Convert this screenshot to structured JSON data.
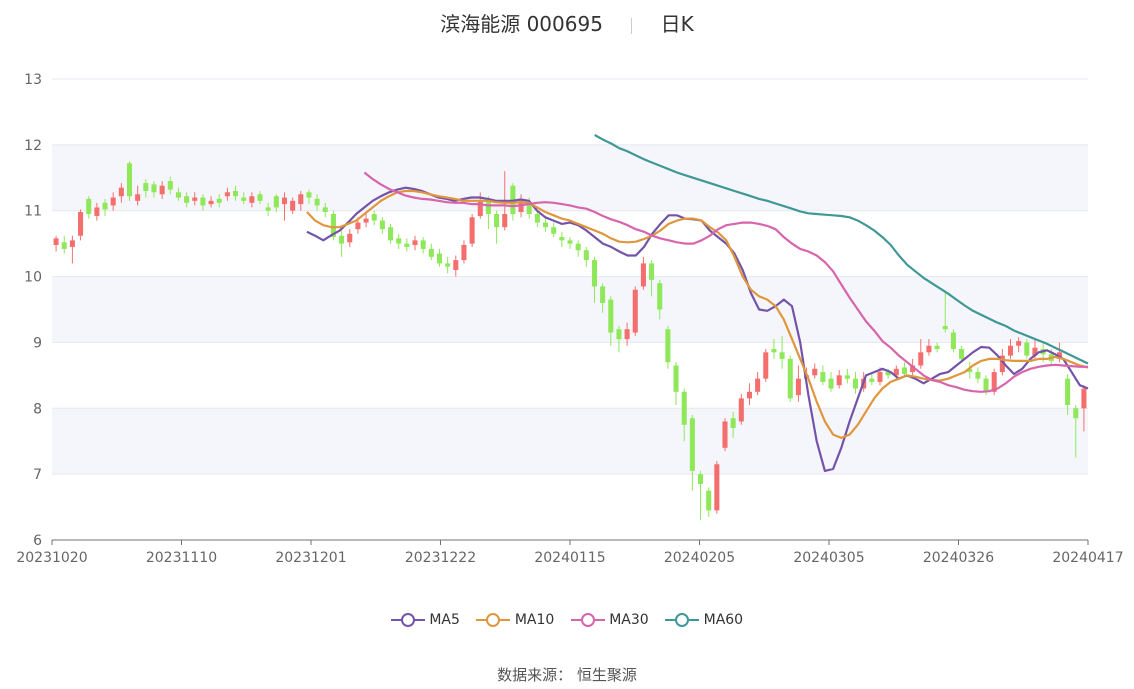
{
  "header": {
    "stock_name": "滨海能源",
    "stock_code": "000695",
    "period": "日K"
  },
  "source": {
    "label": "数据来源：",
    "value": "恒生聚源"
  },
  "colors": {
    "up": "#f56e6e",
    "down": "#8ee85a",
    "grid_band": "#f5f6fb",
    "grid_line": "#e6e8f0",
    "MA5": "#7454a8",
    "MA10": "#e0963c",
    "MA30": "#d864ac",
    "MA60": "#3f9896"
  },
  "chart_data": {
    "type": "candlestick",
    "title": "滨海能源 000695 日K",
    "ylim": [
      6,
      13
    ],
    "y_ticks": [
      6,
      7,
      8,
      9,
      10,
      11,
      12,
      13
    ],
    "x_ticks": [
      "20231020",
      "20231110",
      "20231201",
      "20231222",
      "20240115",
      "20240205",
      "20240305",
      "20240326",
      "20240417"
    ],
    "grid": true,
    "legend_position": "bottom",
    "series": [
      {
        "name": "MA5",
        "values": [
          10.68,
          10.62,
          10.55,
          10.63,
          10.7,
          10.82,
          10.95,
          11.05,
          11.15,
          11.22,
          11.28,
          11.32,
          11.35,
          11.33,
          11.3,
          11.25,
          11.2,
          11.18,
          11.15,
          11.18,
          11.2,
          11.2,
          11.18,
          11.15,
          11.15,
          11.15,
          11.17,
          11.15,
          11.0,
          10.9,
          10.85,
          10.8,
          10.82,
          10.78,
          10.7,
          10.6,
          10.5,
          10.45,
          10.38,
          10.32,
          10.32,
          10.45,
          10.65,
          10.8,
          10.93,
          10.93,
          10.88,
          10.87,
          10.85,
          10.7,
          10.6,
          10.5,
          10.35,
          10.1,
          9.75,
          9.5,
          9.48,
          9.55,
          9.65,
          9.55,
          9.0,
          8.2,
          7.5,
          7.05,
          7.08,
          7.4,
          7.8,
          8.15,
          8.5,
          8.55,
          8.6,
          8.55,
          8.45,
          8.5,
          8.45,
          8.38,
          8.45,
          8.52,
          8.55,
          8.65,
          8.75,
          8.85,
          8.93,
          8.92,
          8.8,
          8.65,
          8.52,
          8.6,
          8.75,
          8.85,
          8.88,
          8.82,
          8.75,
          8.55,
          8.35,
          8.3
        ]
      },
      {
        "name": "MA10",
        "values": [
          10.98,
          10.85,
          10.78,
          10.75,
          10.75,
          10.8,
          10.85,
          10.95,
          11.05,
          11.15,
          11.22,
          11.28,
          11.3,
          11.3,
          11.28,
          11.25,
          11.22,
          11.2,
          11.18,
          11.15,
          11.15,
          11.15,
          11.15,
          11.13,
          11.12,
          11.12,
          11.13,
          11.12,
          11.05,
          10.98,
          10.93,
          10.88,
          10.85,
          10.8,
          10.75,
          10.7,
          10.65,
          10.58,
          10.53,
          10.52,
          10.53,
          10.57,
          10.62,
          10.7,
          10.8,
          10.85,
          10.88,
          10.88,
          10.85,
          10.75,
          10.67,
          10.55,
          10.3,
          10.0,
          9.8,
          9.7,
          9.65,
          9.55,
          9.35,
          9.05,
          8.75,
          8.45,
          8.1,
          7.8,
          7.6,
          7.55,
          7.6,
          7.75,
          7.95,
          8.15,
          8.3,
          8.4,
          8.45,
          8.5,
          8.48,
          8.45,
          8.43,
          8.42,
          8.45,
          8.5,
          8.55,
          8.65,
          8.72,
          8.75,
          8.75,
          8.73,
          8.72,
          8.72,
          8.72,
          8.75,
          8.75,
          8.78,
          8.75,
          8.7,
          8.65,
          8.62
        ]
      },
      {
        "name": "MA30",
        "values": [
          11.58,
          11.48,
          11.4,
          11.33,
          11.28,
          11.23,
          11.2,
          11.18,
          11.17,
          11.15,
          11.13,
          11.12,
          11.12,
          11.1,
          11.1,
          11.08,
          11.08,
          11.08,
          11.07,
          11.08,
          11.1,
          11.12,
          11.13,
          11.12,
          11.1,
          11.08,
          11.05,
          11.03,
          10.98,
          10.92,
          10.87,
          10.83,
          10.78,
          10.72,
          10.68,
          10.62,
          10.58,
          10.55,
          10.52,
          10.5,
          10.5,
          10.55,
          10.62,
          10.72,
          10.78,
          10.8,
          10.82,
          10.82,
          10.8,
          10.77,
          10.72,
          10.6,
          10.5,
          10.42,
          10.38,
          10.32,
          10.22,
          10.08,
          9.88,
          9.68,
          9.5,
          9.32,
          9.18,
          9.02,
          8.92,
          8.8,
          8.7,
          8.6,
          8.5,
          8.43,
          8.4,
          8.35,
          8.32,
          8.28,
          8.26,
          8.25,
          8.26,
          8.3,
          8.38,
          8.48,
          8.55,
          8.6,
          8.63,
          8.65,
          8.66,
          8.65,
          8.64,
          8.63,
          8.63
        ]
      },
      {
        "name": "MA60",
        "values": [
          12.15,
          12.08,
          12.02,
          11.95,
          11.9,
          11.84,
          11.78,
          11.73,
          11.68,
          11.63,
          11.58,
          11.54,
          11.5,
          11.46,
          11.42,
          11.38,
          11.34,
          11.3,
          11.26,
          11.22,
          11.18,
          11.15,
          11.11,
          11.07,
          11.03,
          10.99,
          10.96,
          10.95,
          10.94,
          10.93,
          10.92,
          10.9,
          10.85,
          10.78,
          10.7,
          10.6,
          10.48,
          10.32,
          10.18,
          10.08,
          9.98,
          9.9,
          9.82,
          9.74,
          9.65,
          9.56,
          9.48,
          9.42,
          9.36,
          9.3,
          9.25,
          9.18,
          9.13,
          9.08,
          9.03,
          8.98,
          8.92,
          8.86,
          8.8,
          8.74,
          8.68
        ]
      }
    ],
    "candles": [
      [
        10.48,
        10.58,
        10.62,
        10.38
      ],
      [
        10.52,
        10.42,
        10.62,
        10.35
      ],
      [
        10.45,
        10.55,
        10.62,
        10.2
      ],
      [
        10.62,
        10.98,
        11.02,
        10.55
      ],
      [
        11.18,
        10.95,
        11.22,
        10.88
      ],
      [
        10.92,
        11.05,
        11.12,
        10.85
      ],
      [
        11.12,
        11.02,
        11.18,
        10.92
      ],
      [
        11.08,
        11.2,
        11.28,
        11.0
      ],
      [
        11.22,
        11.35,
        11.42,
        11.12
      ],
      [
        11.72,
        11.22,
        11.75,
        11.15
      ],
      [
        11.15,
        11.25,
        11.38,
        11.08
      ],
      [
        11.42,
        11.3,
        11.48,
        11.2
      ],
      [
        11.4,
        11.28,
        11.45,
        11.2
      ],
      [
        11.25,
        11.38,
        11.45,
        11.18
      ],
      [
        11.45,
        11.32,
        11.52,
        11.25
      ],
      [
        11.28,
        11.2,
        11.35,
        11.15
      ],
      [
        11.22,
        11.12,
        11.28,
        11.05
      ],
      [
        11.15,
        11.2,
        11.28,
        11.08
      ],
      [
        11.2,
        11.08,
        11.25,
        11.0
      ],
      [
        11.1,
        11.15,
        11.22,
        11.05
      ],
      [
        11.18,
        11.12,
        11.25,
        11.05
      ],
      [
        11.22,
        11.28,
        11.35,
        11.15
      ],
      [
        11.3,
        11.22,
        11.38,
        11.15
      ],
      [
        11.2,
        11.15,
        11.28,
        11.1
      ],
      [
        11.12,
        11.22,
        11.28,
        11.05
      ],
      [
        11.25,
        11.15,
        11.3,
        11.1
      ],
      [
        11.05,
        11.0,
        11.12,
        10.92
      ],
      [
        11.22,
        11.05,
        11.25,
        10.98
      ],
      [
        11.1,
        11.2,
        11.28,
        10.85
      ],
      [
        11.0,
        11.15,
        11.2,
        10.95
      ],
      [
        11.1,
        11.25,
        11.3,
        11.0
      ],
      [
        11.28,
        11.2,
        11.32,
        11.1
      ],
      [
        11.18,
        11.08,
        11.25,
        11.0
      ],
      [
        11.05,
        10.98,
        11.12,
        10.9
      ],
      [
        10.95,
        10.6,
        11.0,
        10.55
      ],
      [
        10.62,
        10.5,
        10.7,
        10.3
      ],
      [
        10.52,
        10.65,
        10.72,
        10.45
      ],
      [
        10.72,
        10.82,
        10.9,
        10.65
      ],
      [
        10.82,
        10.88,
        10.95,
        10.75
      ],
      [
        10.95,
        10.85,
        11.0,
        10.78
      ],
      [
        10.85,
        10.72,
        10.9,
        10.65
      ],
      [
        10.75,
        10.55,
        10.8,
        10.5
      ],
      [
        10.58,
        10.5,
        10.65,
        10.42
      ],
      [
        10.5,
        10.45,
        10.58,
        10.38
      ],
      [
        10.48,
        10.55,
        10.62,
        10.4
      ],
      [
        10.55,
        10.42,
        10.6,
        10.35
      ],
      [
        10.42,
        10.3,
        10.5,
        10.25
      ],
      [
        10.35,
        10.2,
        10.42,
        10.15
      ],
      [
        10.2,
        10.15,
        10.3,
        10.05
      ],
      [
        10.1,
        10.25,
        10.32,
        10.0
      ],
      [
        10.25,
        10.48,
        10.55,
        10.2
      ],
      [
        10.5,
        10.9,
        10.95,
        10.45
      ],
      [
        10.92,
        11.15,
        11.28,
        10.88
      ],
      [
        11.15,
        10.95,
        11.22,
        10.72
      ],
      [
        10.95,
        10.75,
        11.0,
        10.5
      ],
      [
        10.75,
        10.95,
        11.6,
        10.7
      ],
      [
        11.38,
        10.95,
        11.42,
        10.85
      ],
      [
        10.98,
        11.15,
        11.25,
        10.9
      ],
      [
        11.1,
        10.95,
        11.2,
        10.88
      ],
      [
        10.95,
        10.82,
        11.0,
        10.75
      ],
      [
        10.82,
        10.75,
        10.9,
        10.68
      ],
      [
        10.75,
        10.65,
        10.82,
        10.6
      ],
      [
        10.6,
        10.55,
        10.68,
        10.45
      ],
      [
        10.55,
        10.5,
        10.6,
        10.42
      ],
      [
        10.5,
        10.4,
        10.55,
        10.3
      ],
      [
        10.4,
        10.25,
        10.45,
        10.15
      ],
      [
        10.25,
        9.85,
        10.3,
        9.6
      ],
      [
        9.85,
        9.6,
        9.9,
        9.45
      ],
      [
        9.65,
        9.15,
        9.7,
        8.95
      ],
      [
        9.2,
        9.05,
        9.25,
        8.85
      ],
      [
        9.05,
        9.2,
        9.3,
        8.95
      ],
      [
        9.15,
        9.8,
        9.85,
        9.1
      ],
      [
        9.85,
        10.2,
        10.3,
        9.8
      ],
      [
        10.2,
        9.95,
        10.25,
        9.7
      ],
      [
        9.9,
        9.5,
        9.95,
        9.35
      ],
      [
        9.2,
        8.7,
        9.25,
        8.6
      ],
      [
        8.65,
        8.25,
        8.7,
        8.05
      ],
      [
        8.25,
        7.75,
        8.3,
        7.5
      ],
      [
        7.85,
        7.05,
        7.9,
        6.75
      ],
      [
        7.0,
        6.85,
        7.05,
        6.3
      ],
      [
        6.75,
        6.45,
        6.8,
        6.35
      ],
      [
        6.45,
        7.15,
        7.2,
        6.4
      ],
      [
        7.4,
        7.8,
        7.85,
        7.35
      ],
      [
        7.85,
        7.7,
        7.95,
        7.55
      ],
      [
        7.8,
        8.15,
        8.22,
        7.75
      ],
      [
        8.15,
        8.25,
        8.38,
        8.05
      ],
      [
        8.25,
        8.45,
        8.55,
        8.2
      ],
      [
        8.45,
        8.85,
        8.9,
        8.4
      ],
      [
        8.9,
        8.85,
        9.05,
        8.75
      ],
      [
        8.85,
        8.75,
        9.1,
        8.6
      ],
      [
        8.75,
        8.15,
        8.8,
        8.1
      ],
      [
        8.2,
        8.45,
        8.65,
        8.1
      ],
      [
        8.45,
        8.5,
        8.62,
        8.35
      ],
      [
        8.5,
        8.6,
        8.68,
        8.45
      ],
      [
        8.55,
        8.4,
        8.65,
        8.35
      ],
      [
        8.45,
        8.3,
        8.55,
        8.25
      ],
      [
        8.35,
        8.5,
        8.58,
        8.3
      ],
      [
        8.5,
        8.45,
        8.6,
        8.38
      ],
      [
        8.45,
        8.3,
        8.55,
        8.22
      ],
      [
        8.3,
        8.45,
        8.55,
        8.25
      ],
      [
        8.45,
        8.4,
        8.55,
        8.35
      ],
      [
        8.4,
        8.55,
        8.62,
        8.35
      ],
      [
        8.55,
        8.5,
        8.6,
        8.45
      ],
      [
        8.5,
        8.6,
        8.65,
        8.45
      ],
      [
        8.62,
        8.52,
        8.7,
        8.48
      ],
      [
        8.55,
        8.65,
        8.75,
        8.5
      ],
      [
        8.65,
        8.85,
        9.05,
        8.6
      ],
      [
        8.85,
        8.95,
        9.05,
        8.8
      ],
      [
        8.95,
        8.9,
        9.0,
        8.85
      ],
      [
        9.25,
        9.2,
        9.78,
        9.15
      ],
      [
        9.15,
        8.9,
        9.2,
        8.85
      ],
      [
        8.9,
        8.75,
        8.95,
        8.7
      ],
      [
        8.6,
        8.55,
        8.7,
        8.45
      ],
      [
        8.55,
        8.45,
        8.62,
        8.38
      ],
      [
        8.45,
        8.25,
        8.5,
        8.2
      ],
      [
        8.25,
        8.55,
        8.6,
        8.2
      ],
      [
        8.55,
        8.8,
        8.9,
        8.5
      ],
      [
        8.8,
        8.95,
        9.05,
        8.75
      ],
      [
        8.95,
        9.02,
        9.08,
        8.85
      ],
      [
        9.0,
        8.8,
        9.05,
        8.75
      ],
      [
        8.8,
        8.92,
        9.05,
        8.75
      ],
      [
        8.9,
        8.82,
        9.0,
        8.7
      ],
      [
        8.82,
        8.72,
        8.9,
        8.65
      ],
      [
        8.75,
        8.85,
        9.0,
        8.7
      ],
      [
        8.45,
        8.05,
        8.52,
        7.9
      ],
      [
        8.0,
        7.85,
        8.05,
        7.25
      ],
      [
        8.0,
        8.3,
        8.35,
        7.65
      ]
    ]
  }
}
